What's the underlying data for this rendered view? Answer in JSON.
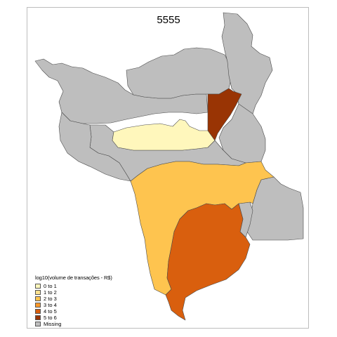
{
  "map": {
    "title": "5555",
    "legend": {
      "title": "log10(volume de transações - R$)",
      "items": [
        {
          "label": "0 to 1",
          "color": "#fff7bc"
        },
        {
          "label": "1 to 2",
          "color": "#fee391"
        },
        {
          "label": "2 to 3",
          "color": "#fec44f"
        },
        {
          "label": "3 to 4",
          "color": "#fe9929"
        },
        {
          "label": "4 to 5",
          "color": "#d95f0e"
        },
        {
          "label": "5 to 6",
          "color": "#993404"
        },
        {
          "label": "Missing",
          "color": "#bebebe"
        }
      ]
    },
    "region_classes": {
      "west-central": "0 to 1",
      "south-central": "2 to 3",
      "south-east": "4 to 5",
      "north-strip": "5 to 6"
    }
  }
}
